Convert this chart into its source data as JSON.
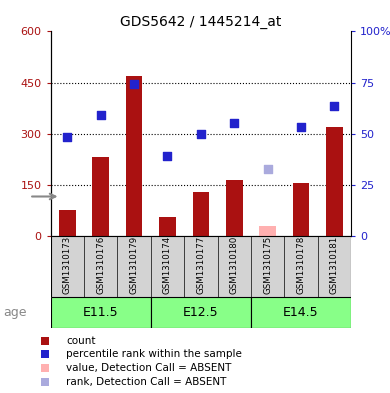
{
  "title": "GDS5642 / 1445214_at",
  "samples": [
    "GSM1310173",
    "GSM1310176",
    "GSM1310179",
    "GSM1310174",
    "GSM1310177",
    "GSM1310180",
    "GSM1310175",
    "GSM1310178",
    "GSM1310181"
  ],
  "counts": [
    75,
    230,
    470,
    55,
    130,
    165,
    null,
    155,
    320
  ],
  "counts_absent": [
    null,
    null,
    null,
    null,
    null,
    null,
    30,
    null,
    null
  ],
  "percentile_ranks_left": [
    290,
    355,
    445,
    235,
    300,
    330,
    null,
    320,
    380
  ],
  "percentile_ranks_absent_left": [
    null,
    null,
    null,
    null,
    null,
    null,
    195,
    null,
    null
  ],
  "age_groups": [
    {
      "label": "E11.5",
      "start": 0,
      "end": 3
    },
    {
      "label": "E12.5",
      "start": 3,
      "end": 6
    },
    {
      "label": "E14.5",
      "start": 6,
      "end": 9
    }
  ],
  "ylim_left": [
    0,
    600
  ],
  "ylim_right": [
    0,
    100
  ],
  "yticks_left": [
    0,
    150,
    300,
    450,
    600
  ],
  "ytick_labels_left": [
    "0",
    "150",
    "300",
    "450",
    "600"
  ],
  "yticks_right": [
    0,
    25,
    50,
    75,
    100
  ],
  "ytick_labels_right": [
    "0",
    "25",
    "50",
    "75",
    "100%"
  ],
  "bar_color": "#AA1111",
  "bar_absent_color": "#FFB0B0",
  "rank_color": "#2222CC",
  "rank_absent_color": "#AAAADD",
  "age_label": "age",
  "age_bg_color": "#88FF88",
  "age_bg_color2": "#AAFFAA",
  "sample_bg_color": "#D3D3D3",
  "legend_items": [
    {
      "label": "count",
      "color": "#AA1111"
    },
    {
      "label": "percentile rank within the sample",
      "color": "#2222CC"
    },
    {
      "label": "value, Detection Call = ABSENT",
      "color": "#FFB0B0"
    },
    {
      "label": "rank, Detection Call = ABSENT",
      "color": "#AAAADD"
    }
  ]
}
